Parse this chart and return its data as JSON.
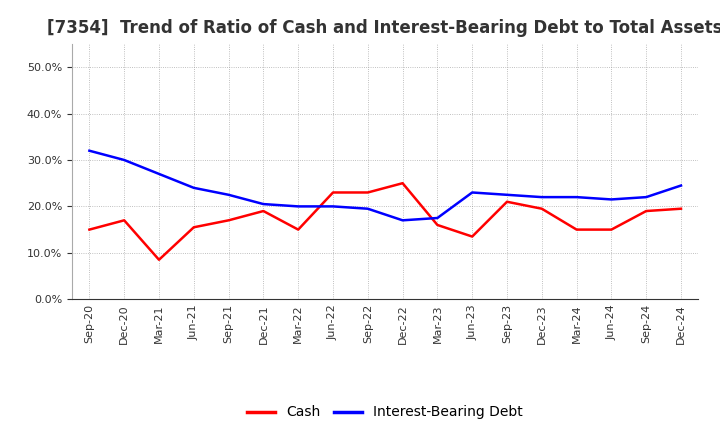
{
  "title": "[7354]  Trend of Ratio of Cash and Interest-Bearing Debt to Total Assets",
  "x_labels": [
    "Sep-20",
    "Dec-20",
    "Mar-21",
    "Jun-21",
    "Sep-21",
    "Dec-21",
    "Mar-22",
    "Jun-22",
    "Sep-22",
    "Dec-22",
    "Mar-23",
    "Jun-23",
    "Sep-23",
    "Dec-23",
    "Mar-24",
    "Jun-24",
    "Sep-24",
    "Dec-24"
  ],
  "cash": [
    15.0,
    17.0,
    8.5,
    15.5,
    17.0,
    19.0,
    15.0,
    23.0,
    23.0,
    25.0,
    16.0,
    13.5,
    21.0,
    19.5,
    15.0,
    15.0,
    19.0,
    19.5
  ],
  "ibd": [
    32.0,
    30.0,
    27.0,
    24.0,
    22.5,
    20.5,
    20.0,
    20.0,
    19.5,
    17.0,
    17.5,
    23.0,
    22.5,
    22.0,
    22.0,
    21.5,
    22.0,
    24.5
  ],
  "cash_color": "#FF0000",
  "ibd_color": "#0000FF",
  "ylim": [
    0,
    55
  ],
  "yticks": [
    0.0,
    10.0,
    20.0,
    30.0,
    40.0,
    50.0
  ],
  "background_color": "#FFFFFF",
  "plot_bg_color": "#FFFFFF",
  "grid_color": "#888888",
  "title_fontsize": 12,
  "title_color": "#333333",
  "tick_fontsize": 8,
  "legend_labels": [
    "Cash",
    "Interest-Bearing Debt"
  ],
  "legend_fontsize": 10,
  "line_width": 1.8
}
